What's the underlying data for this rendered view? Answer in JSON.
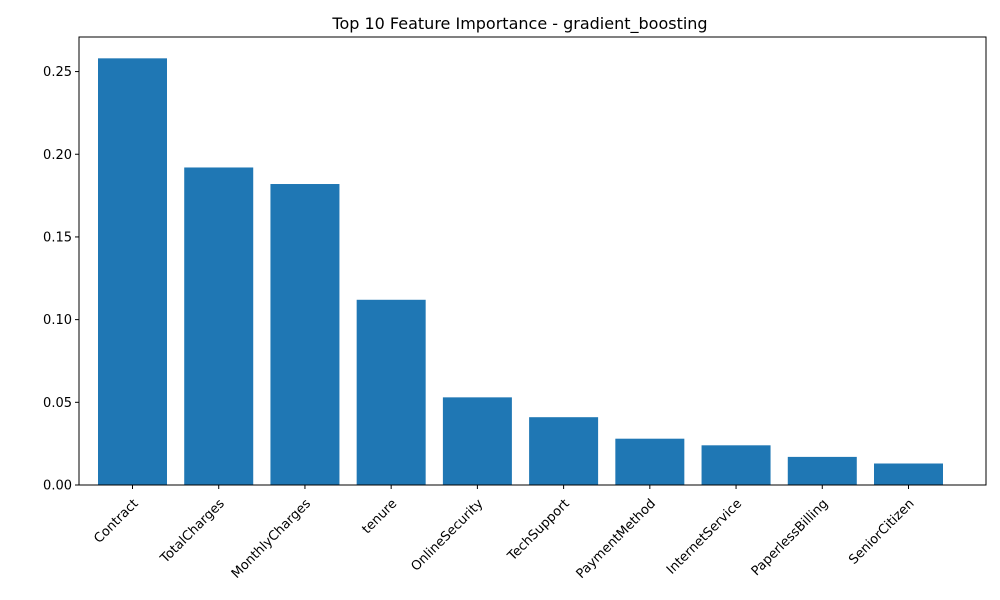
{
  "chart_data": {
    "type": "bar",
    "title": "Top 10 Feature Importance - gradient_boosting",
    "xlabel": "",
    "ylabel": "",
    "categories": [
      "Contract",
      "TotalCharges",
      "MonthlyCharges",
      "tenure",
      "OnlineSecurity",
      "TechSupport",
      "PaymentMethod",
      "InternetService",
      "PaperlessBilling",
      "SeniorCitizen"
    ],
    "values": [
      0.258,
      0.192,
      0.182,
      0.112,
      0.053,
      0.041,
      0.028,
      0.024,
      0.017,
      0.013
    ],
    "ylim": [
      0,
      0.2709
    ],
    "yticks": [
      0.0,
      0.05,
      0.1,
      0.15,
      0.2,
      0.25
    ],
    "ytick_labels": [
      "0.00",
      "0.05",
      "0.10",
      "0.15",
      "0.20",
      "0.25"
    ],
    "bar_color": "#1f77b4",
    "grid": false,
    "legend": "none"
  }
}
